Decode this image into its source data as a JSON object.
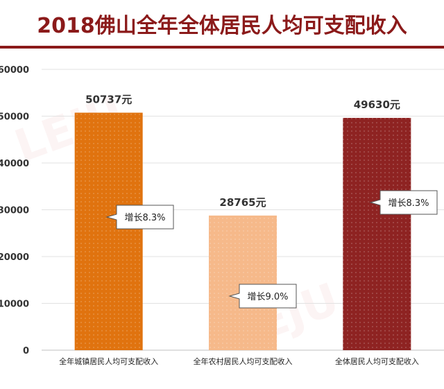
{
  "title": "2018佛山全年全体居民人均可支配收入",
  "colors": {
    "title": "#8b1a1a",
    "urban_bar": "#e0730f",
    "rural_bar": "#f6b98a",
    "total_bar": "#8e2322",
    "value_label": "#333333"
  },
  "chart_data": {
    "type": "bar",
    "title": "2018佛山全年全体居民人均可支配收入",
    "categories": [
      "全年城镇居民人均可支配收入",
      "全年农村居民人均可支配收入",
      "全体居民人均可支配收入"
    ],
    "values": [
      50737,
      28765,
      49630
    ],
    "value_labels": [
      "50737元",
      "28765元",
      "49630元"
    ],
    "growth_labels": [
      "增长8.3%",
      "增长9.0%",
      "增长8.3%"
    ],
    "y_ticks": [
      0,
      10000,
      20000,
      30000,
      40000,
      50000,
      60000
    ],
    "ylim": [
      0,
      60000
    ],
    "xlabel": "",
    "ylabel": "",
    "grid": true,
    "legend": "none"
  }
}
